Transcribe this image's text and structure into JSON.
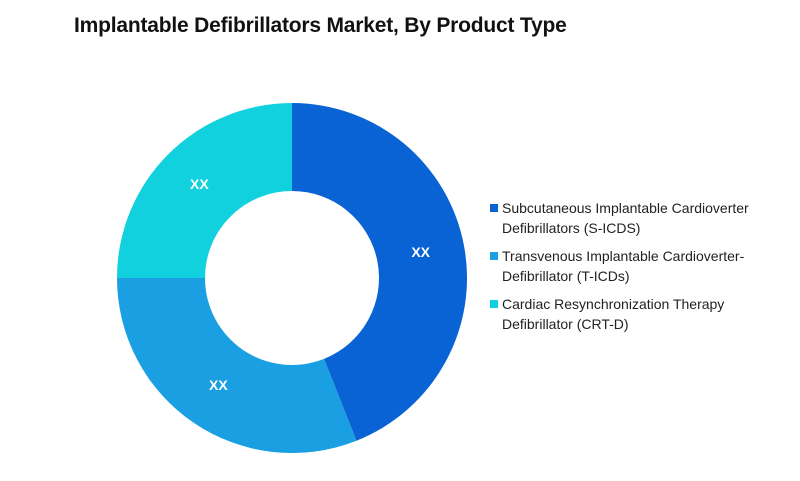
{
  "title": "Implantable Defibrillators Market, By Product Type",
  "chart_data": {
    "type": "pie",
    "donut": true,
    "title": "Implantable Defibrillators Market, By Product Type",
    "categories": [
      "Subcutaneous Implantable Cardioverter Defibrillators (S-ICDS)",
      "Transvenous Implantable Cardioverter-Defibrillator (T-ICDs)",
      "Cardiac Resynchronization Therapy Defibrillator (CRT-D)"
    ],
    "values": [
      44,
      31,
      25
    ],
    "labels": [
      "XX",
      "XX",
      "XX"
    ],
    "colors": [
      "#0A63D4",
      "#1B9FE3",
      "#12D1DE"
    ],
    "legend_position": "right"
  }
}
